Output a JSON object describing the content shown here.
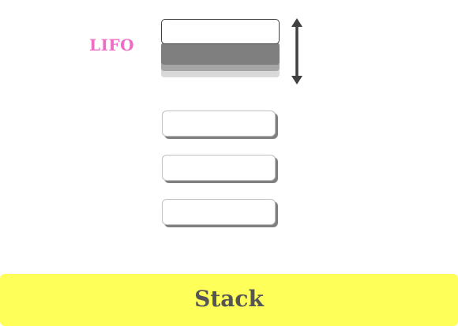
{
  "diagram": {
    "label": "LIFO",
    "label_color": "#ee6cc4",
    "title": "Stack",
    "title_color": "#555555",
    "banner_color": "#ffff59",
    "top_stack_layers": [
      {
        "fill": "#ffffff"
      },
      {
        "fill": "#7f7f7f"
      },
      {
        "fill": "#a6a6a6"
      },
      {
        "fill": "#d9d9d9"
      }
    ],
    "item_count": 3,
    "arrow": {
      "icon": "double-headed-vertical-arrow-icon",
      "color": "#404040"
    }
  }
}
